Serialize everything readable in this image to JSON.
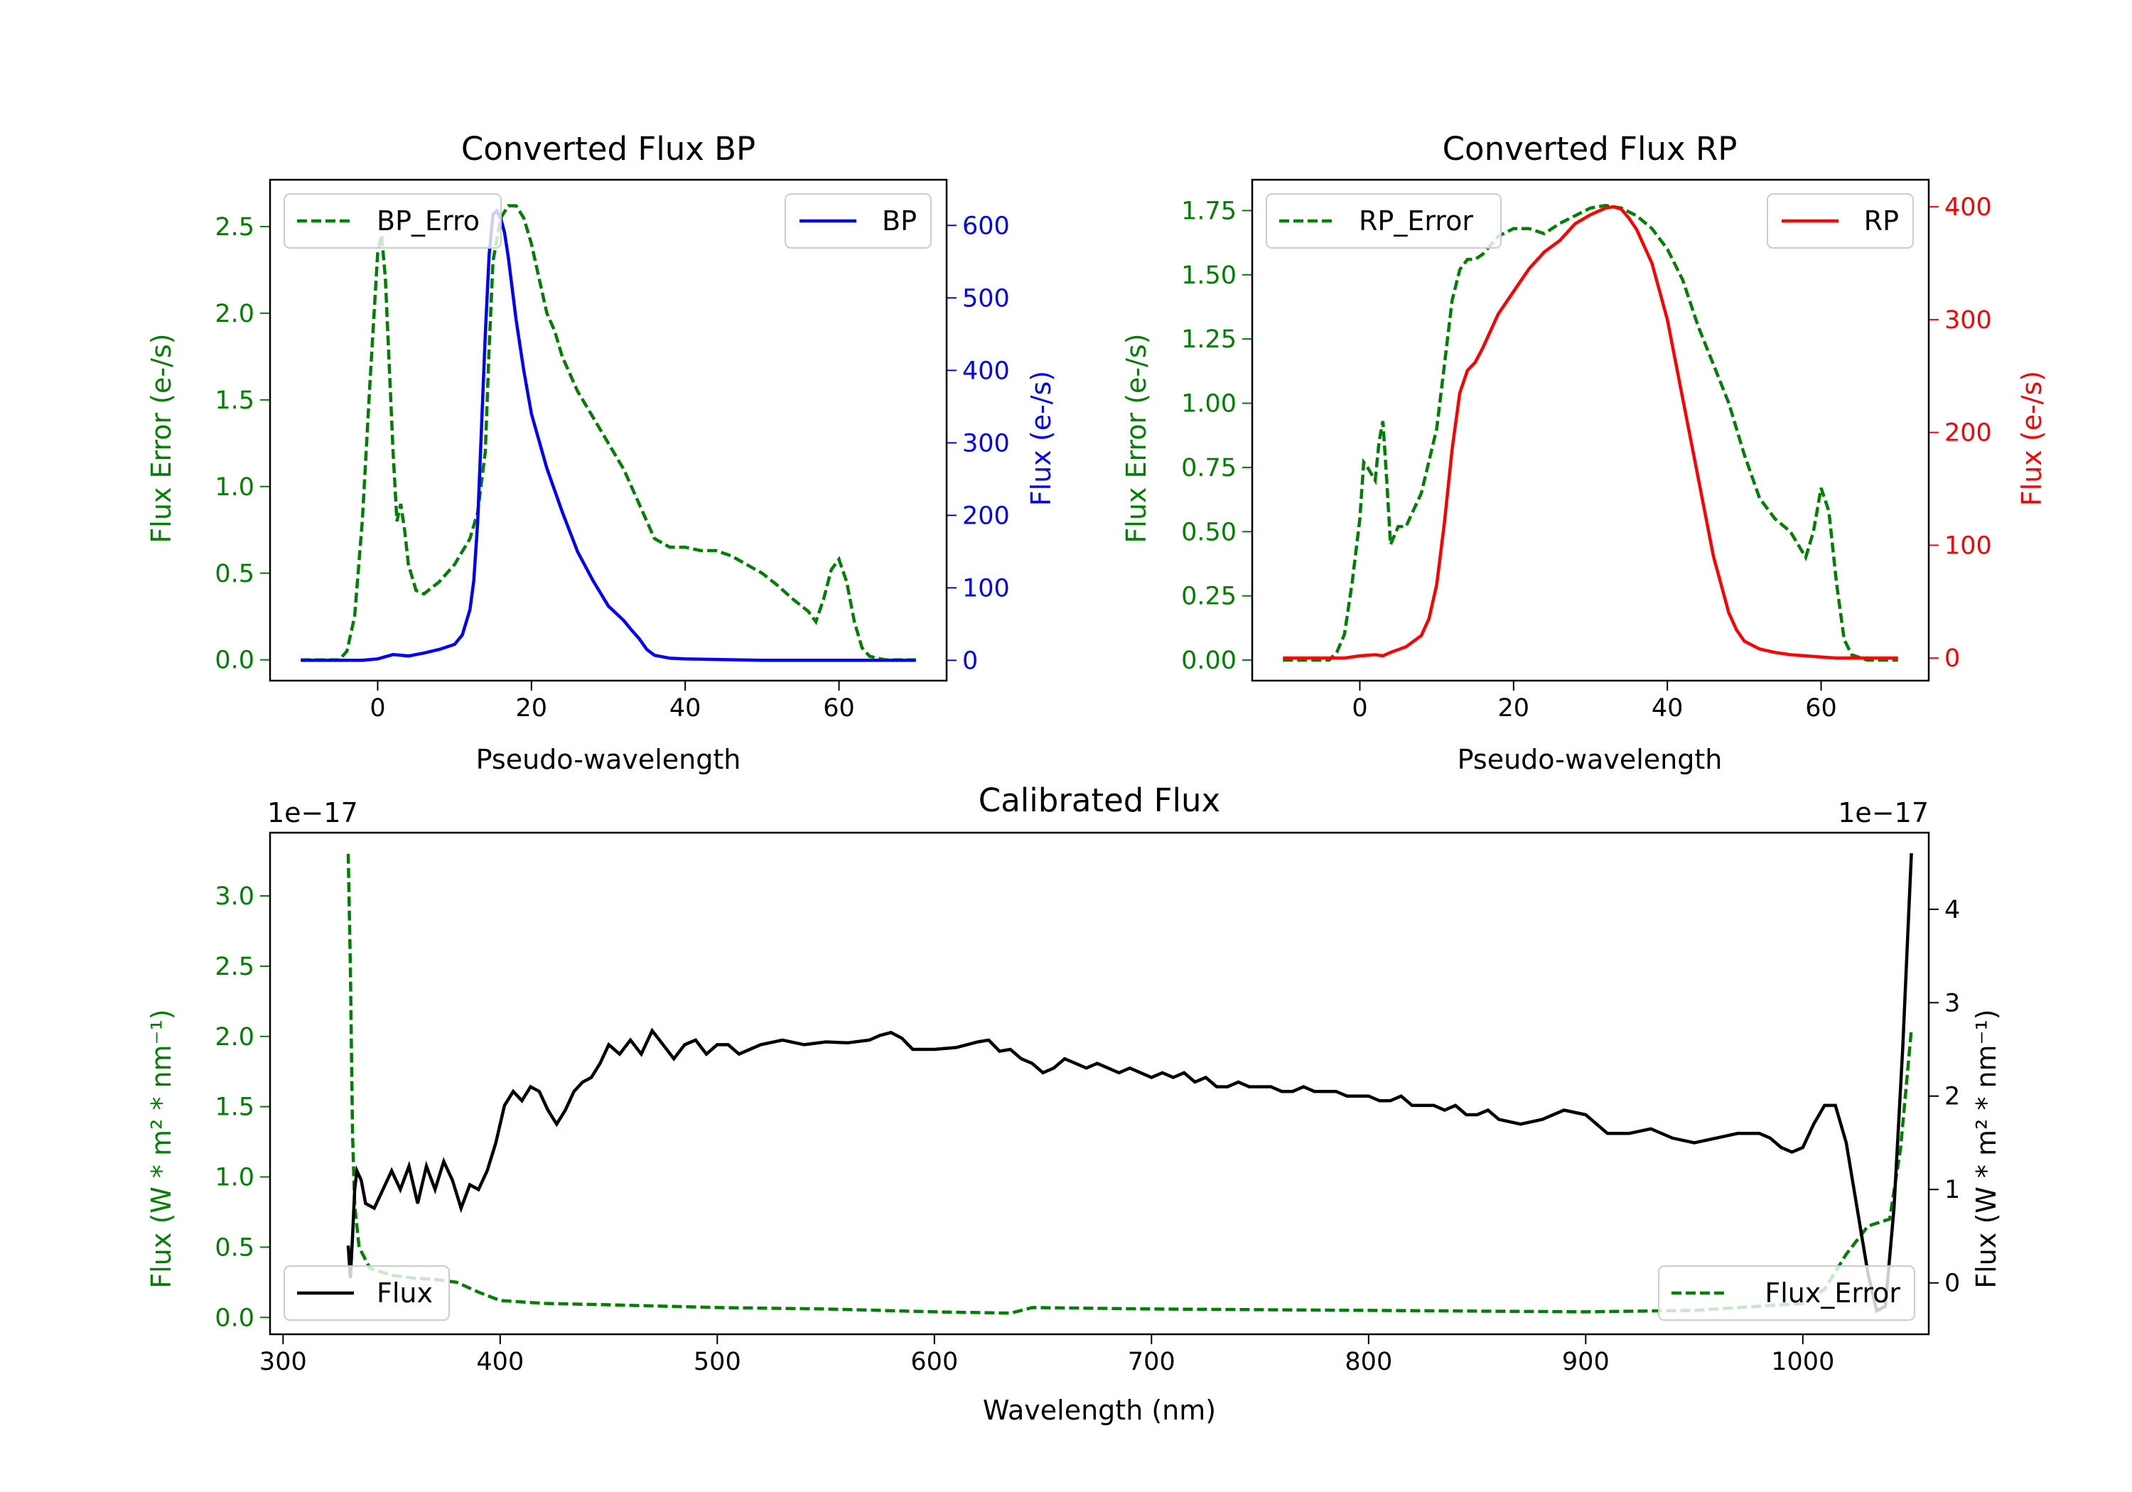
{
  "figure": {
    "colors": {
      "green": "#008000",
      "blue": "#0000ff",
      "red": "#ff0000",
      "black": "#000000"
    }
  },
  "chart_data": [
    {
      "id": "bp",
      "type": "line",
      "title": "Converted Flux BP",
      "xlabel": "Pseudo-wavelength",
      "ylabel_left": "Flux Error (e-/s)",
      "ylabel_right": "Flux (e-/s)",
      "xlim": [
        -14,
        74
      ],
      "ylim_left": [
        -0.12,
        2.77
      ],
      "ylim_right": [
        -28,
        663
      ],
      "x_ticks": [
        0,
        20,
        40,
        60
      ],
      "y_ticks_left": [
        "0.0",
        "0.5",
        "1.0",
        "1.5",
        "2.0",
        "2.5"
      ],
      "y_ticks_right": [
        "0",
        "100",
        "200",
        "300",
        "400",
        "500",
        "600"
      ],
      "grid": false,
      "series": [
        {
          "name": "BP_Error",
          "axis": "left",
          "style": "dashed",
          "color": "#008000",
          "x": [
            -10,
            -5,
            -4,
            -3,
            -2,
            -1,
            0,
            0.5,
            1,
            2,
            2.5,
            3,
            3.5,
            4,
            5,
            6,
            8,
            10,
            12,
            13,
            14,
            14.5,
            15,
            16,
            17,
            18,
            19,
            20,
            21,
            22,
            23,
            24,
            25,
            26,
            28,
            30,
            32,
            33,
            34,
            35,
            36,
            38,
            40,
            42,
            44,
            46,
            48,
            50,
            52,
            54,
            56,
            57,
            58,
            59,
            60,
            61,
            62,
            63,
            64,
            66,
            70
          ],
          "values": [
            0,
            0,
            0.05,
            0.25,
            0.8,
            1.6,
            2.35,
            2.45,
            2.2,
            1.2,
            0.8,
            0.9,
            0.75,
            0.55,
            0.4,
            0.38,
            0.45,
            0.55,
            0.7,
            0.85,
            1.2,
            1.8,
            2.3,
            2.55,
            2.62,
            2.62,
            2.55,
            2.4,
            2.2,
            2.0,
            1.9,
            1.75,
            1.65,
            1.55,
            1.4,
            1.25,
            1.1,
            1.0,
            0.9,
            0.8,
            0.7,
            0.65,
            0.65,
            0.63,
            0.63,
            0.6,
            0.55,
            0.5,
            0.43,
            0.35,
            0.28,
            0.22,
            0.35,
            0.52,
            0.58,
            0.45,
            0.22,
            0.07,
            0.02,
            0,
            0
          ]
        },
        {
          "name": "BP",
          "axis": "right",
          "style": "solid",
          "color": "#0000ff",
          "x": [
            -10,
            -4,
            -2,
            0,
            1,
            2,
            3,
            4,
            6,
            8,
            10,
            11,
            12,
            12.5,
            13,
            13.5,
            14,
            14.5,
            15,
            15.5,
            16,
            16.5,
            17,
            18,
            19,
            20,
            22,
            24,
            26,
            28,
            30,
            31,
            32,
            33,
            34,
            35,
            36,
            38,
            40,
            45,
            50,
            55,
            60,
            65,
            70
          ],
          "values": [
            0,
            0,
            0,
            2,
            5,
            8,
            7,
            6,
            10,
            15,
            22,
            35,
            70,
            110,
            190,
            320,
            450,
            560,
            615,
            620,
            610,
            590,
            555,
            470,
            400,
            340,
            265,
            205,
            150,
            110,
            75,
            65,
            55,
            42,
            30,
            15,
            7,
            3,
            2,
            1,
            0,
            0,
            0,
            0,
            0
          ]
        }
      ],
      "legend": [
        {
          "label": "BP_Erro",
          "position": "upper-left",
          "series": "BP_Error"
        },
        {
          "label": "BP",
          "position": "upper-right",
          "series": "BP"
        }
      ]
    },
    {
      "id": "rp",
      "type": "line",
      "title": "Converted Flux RP",
      "xlabel": "Pseudo-wavelength",
      "ylabel_left": "Flux Error (e-/s)",
      "ylabel_right": "Flux (e-/s)",
      "xlim": [
        -14,
        74
      ],
      "ylim_left": [
        -0.08,
        1.87
      ],
      "ylim_right": [
        -20,
        424
      ],
      "x_ticks": [
        0,
        20,
        40,
        60
      ],
      "y_ticks_left": [
        "0.00",
        "0.25",
        "0.50",
        "0.75",
        "1.00",
        "1.25",
        "1.50",
        "1.75"
      ],
      "y_ticks_right": [
        "0",
        "100",
        "200",
        "300",
        "400"
      ],
      "grid": false,
      "series": [
        {
          "name": "RP_Error",
          "axis": "left",
          "style": "dashed",
          "color": "#008000",
          "x": [
            -10,
            -4,
            -3,
            -2,
            -1,
            0,
            0.5,
            1,
            2,
            2.5,
            3,
            3.5,
            4,
            5,
            6,
            8,
            10,
            11,
            12,
            13,
            14,
            15,
            16,
            18,
            20,
            22,
            24,
            26,
            28,
            30,
            32,
            34,
            36,
            38,
            40,
            42,
            44,
            46,
            48,
            50,
            52,
            54,
            56,
            57,
            58,
            59,
            60,
            61,
            62,
            63,
            64,
            66,
            70
          ],
          "values": [
            0,
            0,
            0.03,
            0.1,
            0.3,
            0.55,
            0.77,
            0.75,
            0.7,
            0.85,
            0.93,
            0.7,
            0.45,
            0.52,
            0.52,
            0.65,
            0.9,
            1.15,
            1.4,
            1.52,
            1.56,
            1.56,
            1.58,
            1.65,
            1.68,
            1.68,
            1.66,
            1.7,
            1.73,
            1.76,
            1.77,
            1.76,
            1.73,
            1.68,
            1.6,
            1.48,
            1.3,
            1.15,
            1.0,
            0.8,
            0.63,
            0.55,
            0.5,
            0.45,
            0.4,
            0.5,
            0.67,
            0.58,
            0.3,
            0.08,
            0.02,
            0,
            0
          ]
        },
        {
          "name": "RP",
          "axis": "right",
          "style": "solid",
          "color": "#ff0000",
          "x": [
            -10,
            -2,
            0,
            2,
            3,
            4,
            6,
            8,
            9,
            10,
            11,
            12,
            13,
            14,
            15,
            16,
            18,
            20,
            22,
            24,
            26,
            28,
            30,
            32,
            33,
            34,
            35,
            36,
            38,
            40,
            42,
            44,
            46,
            48,
            49,
            50,
            52,
            54,
            56,
            58,
            60,
            62,
            66,
            70
          ],
          "values": [
            0,
            0,
            2,
            3,
            2,
            5,
            10,
            20,
            35,
            65,
            120,
            185,
            235,
            255,
            262,
            275,
            305,
            325,
            345,
            360,
            370,
            385,
            393,
            399,
            400,
            398,
            390,
            380,
            350,
            300,
            230,
            160,
            90,
            40,
            25,
            15,
            8,
            5,
            3,
            2,
            1,
            0,
            0,
            0
          ]
        }
      ],
      "legend": [
        {
          "label": "RP_Error",
          "position": "upper-left",
          "series": "RP_Error"
        },
        {
          "label": "RP",
          "position": "upper-right",
          "series": "RP"
        }
      ]
    },
    {
      "id": "cal",
      "type": "line",
      "title": "Calibrated Flux",
      "xlabel": "Wavelength (nm)",
      "ylabel_left": "Flux (W * m² * nm⁻¹)",
      "ylabel_right": "Flux (W * m² * nm⁻¹)",
      "offset_left": "1e−17",
      "offset_right": "1e−17",
      "xlim": [
        294,
        1058
      ],
      "ylim_left": [
        -0.12,
        3.45
      ],
      "ylim_right": [
        -0.55,
        4.82
      ],
      "x_ticks": [
        300,
        400,
        500,
        600,
        700,
        800,
        900,
        1000
      ],
      "y_ticks_left": [
        "0.0",
        "0.5",
        "1.0",
        "1.5",
        "2.0",
        "2.5",
        "3.0"
      ],
      "y_ticks_right": [
        "0",
        "1",
        "2",
        "3",
        "4"
      ],
      "grid": false,
      "series": [
        {
          "name": "Flux_Error",
          "axis": "left",
          "style": "dashed",
          "color": "#008000",
          "x": [
            330,
            331,
            332,
            333,
            335,
            340,
            350,
            360,
            370,
            380,
            390,
            400,
            420,
            450,
            500,
            550,
            600,
            635,
            640,
            645,
            700,
            800,
            900,
            950,
            1000,
            1010,
            1020,
            1030,
            1040,
            1045,
            1050
          ],
          "values": [
            3.3,
            2.5,
            1.3,
            0.8,
            0.5,
            0.35,
            0.3,
            0.28,
            0.27,
            0.25,
            0.18,
            0.12,
            0.1,
            0.09,
            0.07,
            0.06,
            0.04,
            0.03,
            0.05,
            0.07,
            0.06,
            0.05,
            0.04,
            0.05,
            0.1,
            0.2,
            0.45,
            0.65,
            0.7,
            1.2,
            2.05
          ]
        },
        {
          "name": "Flux",
          "axis": "right",
          "style": "solid",
          "color": "#000000",
          "x": [
            330,
            331,
            332,
            333,
            334,
            336,
            338,
            342,
            346,
            350,
            354,
            358,
            362,
            366,
            370,
            374,
            378,
            382,
            386,
            390,
            394,
            398,
            402,
            406,
            410,
            414,
            418,
            422,
            426,
            430,
            434,
            438,
            442,
            446,
            450,
            455,
            460,
            465,
            470,
            475,
            480,
            485,
            490,
            495,
            500,
            505,
            510,
            515,
            520,
            530,
            540,
            550,
            560,
            570,
            575,
            580,
            585,
            590,
            595,
            600,
            610,
            620,
            625,
            630,
            635,
            640,
            645,
            650,
            655,
            660,
            665,
            670,
            675,
            680,
            685,
            690,
            695,
            700,
            705,
            710,
            715,
            720,
            725,
            730,
            735,
            740,
            745,
            750,
            755,
            760,
            765,
            770,
            775,
            780,
            785,
            790,
            795,
            800,
            805,
            810,
            815,
            820,
            825,
            830,
            835,
            840,
            845,
            850,
            855,
            860,
            870,
            880,
            890,
            900,
            910,
            920,
            930,
            940,
            950,
            960,
            970,
            980,
            985,
            990,
            995,
            1000,
            1005,
            1010,
            1015,
            1020,
            1025,
            1030,
            1034,
            1038,
            1042,
            1046,
            1050
          ],
          "values": [
            0.4,
            0.05,
            0.5,
            1.0,
            1.2,
            1.1,
            0.85,
            0.8,
            1.0,
            1.2,
            1.0,
            1.25,
            0.85,
            1.25,
            1.0,
            1.3,
            1.1,
            0.8,
            1.05,
            1.0,
            1.2,
            1.5,
            1.9,
            2.05,
            1.95,
            2.1,
            2.05,
            1.85,
            1.7,
            1.85,
            2.05,
            2.15,
            2.2,
            2.35,
            2.55,
            2.45,
            2.6,
            2.45,
            2.7,
            2.55,
            2.4,
            2.55,
            2.6,
            2.45,
            2.55,
            2.55,
            2.45,
            2.5,
            2.55,
            2.6,
            2.55,
            2.58,
            2.57,
            2.6,
            2.65,
            2.68,
            2.62,
            2.5,
            2.5,
            2.5,
            2.52,
            2.58,
            2.6,
            2.48,
            2.5,
            2.4,
            2.35,
            2.25,
            2.3,
            2.4,
            2.35,
            2.3,
            2.35,
            2.3,
            2.25,
            2.3,
            2.25,
            2.2,
            2.25,
            2.2,
            2.25,
            2.15,
            2.2,
            2.1,
            2.1,
            2.15,
            2.1,
            2.1,
            2.1,
            2.05,
            2.05,
            2.1,
            2.05,
            2.05,
            2.05,
            2.0,
            2.0,
            2.0,
            1.95,
            1.95,
            2.0,
            1.9,
            1.9,
            1.9,
            1.85,
            1.9,
            1.8,
            1.8,
            1.85,
            1.75,
            1.7,
            1.75,
            1.85,
            1.8,
            1.6,
            1.6,
            1.65,
            1.55,
            1.5,
            1.55,
            1.6,
            1.6,
            1.55,
            1.45,
            1.4,
            1.45,
            1.7,
            1.9,
            1.9,
            1.5,
            0.8,
            0.1,
            -0.3,
            -0.25,
            0.8,
            2.5,
            4.6
          ]
        }
      ],
      "legend": [
        {
          "label": "Flux",
          "position": "lower-left",
          "series": "Flux"
        },
        {
          "label": "Flux_Error",
          "position": "lower-right",
          "series": "Flux_Error"
        }
      ]
    }
  ]
}
